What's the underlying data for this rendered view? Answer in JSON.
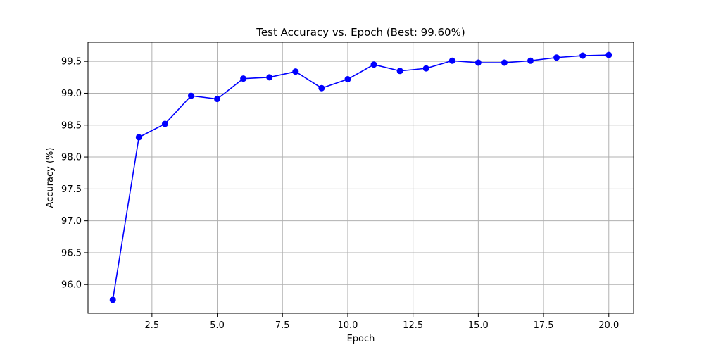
{
  "chart_data": {
    "type": "line",
    "title": "Test Accuracy vs. Epoch (Best: 99.60%)",
    "xlabel": "Epoch",
    "ylabel": "Accuracy (%)",
    "xlim": [
      0.05,
      20.95
    ],
    "ylim": [
      95.55,
      99.8
    ],
    "xticks": [
      2.5,
      5.0,
      7.5,
      10.0,
      12.5,
      15.0,
      17.5,
      20.0
    ],
    "xtick_labels": [
      "2.5",
      "5.0",
      "7.5",
      "10.0",
      "12.5",
      "15.0",
      "17.5",
      "20.0"
    ],
    "yticks": [
      96.0,
      96.5,
      97.0,
      97.5,
      98.0,
      98.5,
      99.0,
      99.5
    ],
    "ytick_labels": [
      "96.0",
      "96.5",
      "97.0",
      "97.5",
      "98.0",
      "98.5",
      "99.0",
      "99.5"
    ],
    "grid": true,
    "series": [
      {
        "color": "#0000ff",
        "marker": "circle",
        "x": [
          1,
          2,
          3,
          4,
          5,
          6,
          7,
          8,
          9,
          10,
          11,
          12,
          13,
          14,
          15,
          16,
          17,
          18,
          19,
          20
        ],
        "values": [
          95.76,
          98.31,
          98.52,
          98.96,
          98.91,
          99.23,
          99.25,
          99.34,
          99.08,
          99.22,
          99.45,
          99.35,
          99.39,
          99.51,
          99.48,
          99.48,
          99.51,
          99.56,
          99.59,
          99.6
        ]
      }
    ]
  }
}
